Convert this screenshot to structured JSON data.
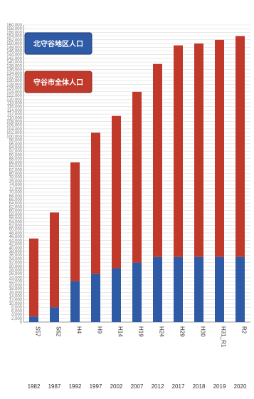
{
  "chart_data": {
    "type": "bar",
    "stacked": true,
    "title": "",
    "xlabel": "",
    "ylabel": "",
    "ylim": [
      0,
      160000
    ],
    "grid": true,
    "legend_position": "top-left",
    "categories": [
      "S57",
      "S62",
      "H4",
      "H9",
      "H14",
      "H19",
      "H24",
      "H29",
      "H30",
      "H31_R1",
      "R2"
    ],
    "years": [
      "1982",
      "1987",
      "1992",
      "1997",
      "2002",
      "2007",
      "2012",
      "2017",
      "2018",
      "2019",
      "2020"
    ],
    "series": [
      {
        "name": "北守谷地区人口",
        "color": "#2e5aa6",
        "values": [
          3000,
          8000,
          22000,
          26000,
          29000,
          32000,
          35000,
          35000,
          35000,
          35000,
          35000
        ]
      },
      {
        "name": "守谷市全体人口",
        "color": "#c0392b",
        "values": [
          42000,
          51000,
          64000,
          76000,
          82000,
          92000,
          104000,
          114000,
          115000,
          117000,
          119000
        ]
      }
    ]
  }
}
